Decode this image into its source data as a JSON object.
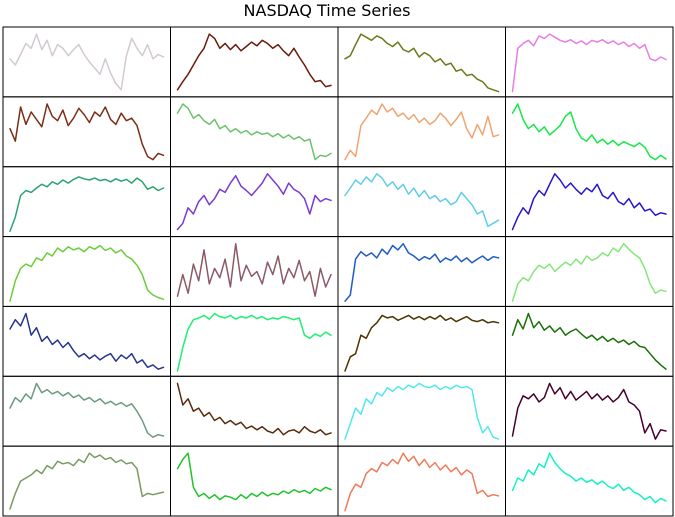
{
  "chart_data": {
    "type": "line",
    "title": "NASDAQ Time Series",
    "rows": 7,
    "cols": 4,
    "axes_visible": false,
    "grid": false,
    "legend": "none",
    "panels": [
      {
        "color": "#d3c9d3",
        "values": [
          0.55,
          0.45,
          0.62,
          0.8,
          0.72,
          0.95,
          0.7,
          0.85,
          0.6,
          0.78,
          0.72,
          0.6,
          0.7,
          0.78,
          0.62,
          0.5,
          0.4,
          0.3,
          0.55,
          0.32,
          0.15,
          0.05,
          0.6,
          0.88,
          0.72,
          0.6,
          0.78,
          0.55,
          0.62,
          0.58
        ]
      },
      {
        "color": "#6b1a0c",
        "values": [
          0.05,
          0.18,
          0.3,
          0.45,
          0.6,
          0.72,
          0.95,
          0.88,
          0.72,
          0.8,
          0.7,
          0.78,
          0.68,
          0.75,
          0.82,
          0.76,
          0.85,
          0.8,
          0.72,
          0.78,
          0.68,
          0.6,
          0.72,
          0.58,
          0.45,
          0.3,
          0.18,
          0.2,
          0.1,
          0.12
        ]
      },
      {
        "color": "#6b7a1a",
        "values": [
          0.55,
          0.6,
          0.78,
          0.95,
          0.9,
          0.85,
          0.92,
          0.88,
          0.8,
          0.75,
          0.82,
          0.7,
          0.66,
          0.72,
          0.58,
          0.65,
          0.6,
          0.5,
          0.55,
          0.45,
          0.48,
          0.35,
          0.38,
          0.28,
          0.3,
          0.22,
          0.18,
          0.08,
          0.05,
          0.02
        ]
      },
      {
        "color": "#e87de8",
        "values": [
          0.02,
          0.72,
          0.8,
          0.85,
          0.76,
          0.92,
          0.88,
          0.95,
          0.9,
          0.85,
          0.82,
          0.86,
          0.8,
          0.84,
          0.78,
          0.85,
          0.82,
          0.86,
          0.8,
          0.84,
          0.78,
          0.82,
          0.75,
          0.8,
          0.72,
          0.78,
          0.55,
          0.52,
          0.58,
          0.54
        ]
      },
      {
        "color": "#7a2e14",
        "values": [
          0.55,
          0.35,
          0.9,
          0.62,
          0.82,
          0.7,
          0.58,
          0.95,
          0.75,
          0.68,
          0.85,
          0.6,
          0.72,
          0.88,
          0.78,
          0.65,
          0.82,
          0.75,
          0.9,
          0.7,
          0.62,
          0.8,
          0.68,
          0.72,
          0.6,
          0.3,
          0.1,
          0.05,
          0.15,
          0.12
        ]
      },
      {
        "color": "#6cc26c",
        "values": [
          0.8,
          0.95,
          0.88,
          0.72,
          0.78,
          0.68,
          0.62,
          0.7,
          0.55,
          0.6,
          0.5,
          0.55,
          0.48,
          0.52,
          0.45,
          0.5,
          0.46,
          0.48,
          0.42,
          0.47,
          0.4,
          0.45,
          0.38,
          0.42,
          0.35,
          0.38,
          0.05,
          0.12,
          0.1,
          0.15
        ]
      },
      {
        "color": "#f0a472",
        "values": [
          0.05,
          0.2,
          0.1,
          0.6,
          0.72,
          0.85,
          0.78,
          0.95,
          0.82,
          0.88,
          0.75,
          0.8,
          0.7,
          0.78,
          0.65,
          0.72,
          0.62,
          0.68,
          0.8,
          0.72,
          0.6,
          0.7,
          0.82,
          0.55,
          0.4,
          0.62,
          0.45,
          0.75,
          0.42,
          0.45
        ]
      },
      {
        "color": "#17e84a",
        "values": [
          0.8,
          0.95,
          0.7,
          0.55,
          0.62,
          0.5,
          0.58,
          0.45,
          0.52,
          0.6,
          0.75,
          0.82,
          0.55,
          0.4,
          0.35,
          0.45,
          0.32,
          0.38,
          0.3,
          0.36,
          0.28,
          0.34,
          0.3,
          0.26,
          0.32,
          0.25,
          0.1,
          0.05,
          0.12,
          0.06
        ]
      },
      {
        "color": "#2aa372",
        "values": [
          0.02,
          0.25,
          0.6,
          0.68,
          0.65,
          0.72,
          0.78,
          0.74,
          0.82,
          0.78,
          0.85,
          0.8,
          0.86,
          0.9,
          0.87,
          0.85,
          0.88,
          0.84,
          0.86,
          0.82,
          0.87,
          0.83,
          0.86,
          0.8,
          0.88,
          0.82,
          0.7,
          0.74,
          0.68,
          0.72
        ]
      },
      {
        "color": "#7a3ad1",
        "values": [
          0.05,
          0.15,
          0.4,
          0.3,
          0.5,
          0.6,
          0.45,
          0.55,
          0.7,
          0.65,
          0.8,
          0.92,
          0.75,
          0.68,
          0.6,
          0.7,
          0.8,
          0.95,
          0.85,
          0.75,
          0.62,
          0.8,
          0.7,
          0.65,
          0.55,
          0.3,
          0.6,
          0.5,
          0.55,
          0.52
        ]
      },
      {
        "color": "#5fcce8",
        "values": [
          0.6,
          0.72,
          0.85,
          0.78,
          0.9,
          0.82,
          0.95,
          0.88,
          0.75,
          0.82,
          0.7,
          0.78,
          0.62,
          0.72,
          0.58,
          0.68,
          0.55,
          0.6,
          0.5,
          0.55,
          0.45,
          0.5,
          0.65,
          0.55,
          0.45,
          0.3,
          0.35,
          0.1,
          0.15,
          0.2
        ]
      },
      {
        "color": "#2414d4",
        "values": [
          0.05,
          0.25,
          0.4,
          0.3,
          0.55,
          0.68,
          0.6,
          0.78,
          0.95,
          0.85,
          0.72,
          0.8,
          0.7,
          0.62,
          0.72,
          0.66,
          0.78,
          0.6,
          0.55,
          0.65,
          0.5,
          0.45,
          0.55,
          0.4,
          0.48,
          0.35,
          0.38,
          0.28,
          0.32,
          0.3
        ]
      },
      {
        "color": "#6ccc3a",
        "values": [
          0.02,
          0.35,
          0.55,
          0.62,
          0.58,
          0.72,
          0.68,
          0.8,
          0.75,
          0.88,
          0.82,
          0.9,
          0.85,
          0.88,
          0.82,
          0.9,
          0.86,
          0.92,
          0.84,
          0.88,
          0.8,
          0.85,
          0.75,
          0.7,
          0.6,
          0.45,
          0.2,
          0.12,
          0.08,
          0.05
        ]
      },
      {
        "color": "#8c5a66",
        "values": [
          0.1,
          0.45,
          0.15,
          0.62,
          0.35,
          0.85,
          0.3,
          0.55,
          0.4,
          0.7,
          0.25,
          0.95,
          0.35,
          0.6,
          0.42,
          0.5,
          0.3,
          0.65,
          0.45,
          0.75,
          0.3,
          0.55,
          0.4,
          0.68,
          0.35,
          0.5,
          0.1,
          0.55,
          0.25,
          0.45
        ]
      },
      {
        "color": "#1f5cc4",
        "values": [
          0.02,
          0.12,
          0.7,
          0.82,
          0.75,
          0.8,
          0.72,
          0.86,
          0.78,
          0.92,
          0.85,
          0.95,
          0.8,
          0.75,
          0.68,
          0.74,
          0.7,
          0.78,
          0.65,
          0.72,
          0.68,
          0.75,
          0.66,
          0.72,
          0.64,
          0.7,
          0.75,
          0.68,
          0.74,
          0.72
        ]
      },
      {
        "color": "#86e67a",
        "values": [
          0.02,
          0.3,
          0.4,
          0.35,
          0.5,
          0.6,
          0.55,
          0.62,
          0.5,
          0.58,
          0.65,
          0.6,
          0.7,
          0.62,
          0.75,
          0.68,
          0.72,
          0.8,
          0.75,
          0.88,
          0.82,
          0.95,
          0.86,
          0.78,
          0.72,
          0.55,
          0.3,
          0.15,
          0.2,
          0.18
        ]
      },
      {
        "color": "#27348c",
        "values": [
          0.7,
          0.85,
          0.75,
          0.95,
          0.6,
          0.72,
          0.5,
          0.58,
          0.45,
          0.52,
          0.4,
          0.48,
          0.35,
          0.25,
          0.3,
          0.22,
          0.28,
          0.2,
          0.26,
          0.3,
          0.18,
          0.28,
          0.22,
          0.3,
          0.15,
          0.2,
          0.08,
          0.12,
          0.05,
          0.08
        ]
      },
      {
        "color": "#1ff074",
        "values": [
          0.02,
          0.4,
          0.7,
          0.85,
          0.88,
          0.92,
          0.86,
          0.95,
          0.9,
          0.88,
          0.92,
          0.86,
          0.9,
          0.88,
          0.92,
          0.87,
          0.9,
          0.85,
          0.88,
          0.86,
          0.9,
          0.88,
          0.85,
          0.88,
          0.6,
          0.55,
          0.62,
          0.58,
          0.65,
          0.6
        ]
      },
      {
        "color": "#4d3300",
        "values": [
          0.02,
          0.25,
          0.3,
          0.6,
          0.55,
          0.72,
          0.8,
          0.92,
          0.88,
          0.9,
          0.84,
          0.88,
          0.92,
          0.86,
          0.9,
          0.85,
          0.9,
          0.86,
          0.92,
          0.84,
          0.88,
          0.82,
          0.86,
          0.9,
          0.84,
          0.82,
          0.85,
          0.8,
          0.82,
          0.8
        ]
      },
      {
        "color": "#1a7008",
        "values": [
          0.6,
          0.85,
          0.7,
          0.95,
          0.72,
          0.82,
          0.68,
          0.75,
          0.65,
          0.72,
          0.6,
          0.66,
          0.7,
          0.62,
          0.55,
          0.6,
          0.52,
          0.58,
          0.5,
          0.55,
          0.48,
          0.52,
          0.45,
          0.5,
          0.42,
          0.4,
          0.3,
          0.2,
          0.12,
          0.05
        ]
      },
      {
        "color": "#6b9a7e",
        "values": [
          0.55,
          0.72,
          0.65,
          0.78,
          0.7,
          0.95,
          0.8,
          0.85,
          0.78,
          0.82,
          0.75,
          0.8,
          0.72,
          0.76,
          0.68,
          0.72,
          0.65,
          0.7,
          0.62,
          0.66,
          0.6,
          0.64,
          0.58,
          0.62,
          0.5,
          0.35,
          0.15,
          0.08,
          0.12,
          0.1
        ]
      },
      {
        "color": "#5a2a0a",
        "values": [
          0.95,
          0.6,
          0.7,
          0.5,
          0.55,
          0.42,
          0.48,
          0.35,
          0.4,
          0.3,
          0.35,
          0.28,
          0.32,
          0.22,
          0.26,
          0.2,
          0.25,
          0.18,
          0.15,
          0.22,
          0.12,
          0.18,
          0.2,
          0.15,
          0.25,
          0.18,
          0.15,
          0.2,
          0.12,
          0.15
        ]
      },
      {
        "color": "#4fe8f0",
        "values": [
          0.05,
          0.3,
          0.55,
          0.45,
          0.7,
          0.62,
          0.8,
          0.75,
          0.88,
          0.82,
          0.9,
          0.85,
          0.92,
          0.88,
          0.95,
          0.9,
          0.88,
          0.92,
          0.85,
          0.9,
          0.86,
          0.92,
          0.88,
          0.9,
          0.85,
          0.4,
          0.15,
          0.25,
          0.08,
          0.05
        ]
      },
      {
        "color": "#45002e",
        "values": [
          0.1,
          0.55,
          0.75,
          0.7,
          0.78,
          0.65,
          0.72,
          0.95,
          0.78,
          0.88,
          0.7,
          0.82,
          0.68,
          0.75,
          0.82,
          0.7,
          0.78,
          0.68,
          0.75,
          0.65,
          0.72,
          0.85,
          0.65,
          0.6,
          0.5,
          0.15,
          0.3,
          0.05,
          0.2,
          0.18
        ]
      },
      {
        "color": "#7a9a62",
        "values": [
          0.05,
          0.3,
          0.5,
          0.55,
          0.6,
          0.68,
          0.62,
          0.75,
          0.7,
          0.82,
          0.78,
          0.8,
          0.75,
          0.85,
          0.8,
          0.95,
          0.88,
          0.92,
          0.85,
          0.88,
          0.8,
          0.84,
          0.78,
          0.8,
          0.7,
          0.25,
          0.3,
          0.28,
          0.3,
          0.32
        ]
      },
      {
        "color": "#1fc42a",
        "values": [
          0.7,
          0.85,
          0.95,
          0.4,
          0.25,
          0.3,
          0.22,
          0.28,
          0.2,
          0.26,
          0.24,
          0.2,
          0.28,
          0.22,
          0.3,
          0.25,
          0.32,
          0.26,
          0.3,
          0.28,
          0.34,
          0.3,
          0.36,
          0.32,
          0.35,
          0.3,
          0.38,
          0.34,
          0.4,
          0.36
        ]
      },
      {
        "color": "#f07a5a",
        "values": [
          0.02,
          0.3,
          0.45,
          0.4,
          0.62,
          0.7,
          0.65,
          0.8,
          0.75,
          0.85,
          0.78,
          0.95,
          0.82,
          0.9,
          0.75,
          0.85,
          0.72,
          0.8,
          0.68,
          0.76,
          0.65,
          0.72,
          0.6,
          0.68,
          0.62,
          0.3,
          0.35,
          0.25,
          0.28,
          0.26
        ]
      },
      {
        "color": "#17f0c4",
        "values": [
          0.35,
          0.55,
          0.5,
          0.68,
          0.6,
          0.78,
          0.72,
          0.95,
          0.8,
          0.7,
          0.62,
          0.58,
          0.5,
          0.55,
          0.48,
          0.52,
          0.45,
          0.5,
          0.42,
          0.38,
          0.45,
          0.35,
          0.4,
          0.32,
          0.28,
          0.2,
          0.25,
          0.15,
          0.22,
          0.18
        ]
      }
    ]
  }
}
